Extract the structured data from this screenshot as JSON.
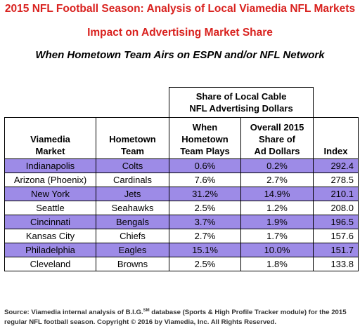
{
  "title_line1": "2015 NFL Football Season: Analysis of Local Viamedia NFL Markets",
  "title_line2": "Impact on Advertising Market Share",
  "subtitle": "When Hometown Team Airs on ESPN and/or NFL Network",
  "group_header": {
    "line1": "Share of Local Cable",
    "line2": "NFL Advertising Dollars"
  },
  "columns": {
    "market": {
      "line1": "Viamedia",
      "line2": "Market"
    },
    "team": {
      "line1": "Hometown",
      "line2": "Team"
    },
    "when": {
      "line1": "When",
      "line2": "Hometown",
      "line3": "Team Plays"
    },
    "overall": {
      "line1": "Overall 2015",
      "line2": "Share of",
      "line3": "Ad Dollars"
    },
    "index": "Index"
  },
  "rows": [
    {
      "market": "Indianapolis",
      "team": "Colts",
      "when": "0.6%",
      "overall": "0.2%",
      "index": "292.4"
    },
    {
      "market": "Arizona (Phoenix)",
      "team": "Cardinals",
      "when": "7.6%",
      "overall": "2.7%",
      "index": "278.5"
    },
    {
      "market": "New York",
      "team": "Jets",
      "when": "31.2%",
      "overall": "14.9%",
      "index": "210.1"
    },
    {
      "market": "Seattle",
      "team": "Seahawks",
      "when": "2.5%",
      "overall": "1.2%",
      "index": "208.0"
    },
    {
      "market": "Cincinnati",
      "team": "Bengals",
      "when": "3.7%",
      "overall": "1.9%",
      "index": "196.5"
    },
    {
      "market": "Kansas City",
      "team": "Chiefs",
      "when": "2.7%",
      "overall": "1.7%",
      "index": "157.6"
    },
    {
      "market": "Philadelphia",
      "team": "Eagles",
      "when": "15.1%",
      "overall": "10.0%",
      "index": "151.7"
    },
    {
      "market": "Cleveland",
      "team": "Browns",
      "when": "2.5%",
      "overall": "1.8%",
      "index": "133.8"
    }
  ],
  "highlight_color": "#9d8be7",
  "title_color": "#d9221f",
  "source": {
    "prefix": "Source: Viamedia internal analysis of B.I.G.",
    "sm": "SM",
    "suffix": " database (Sports & High Profile Tracker module) for the 2015 regular NFL football season.  Copyright © 2016 by Viamedia, Inc. All Rights Reserved."
  }
}
